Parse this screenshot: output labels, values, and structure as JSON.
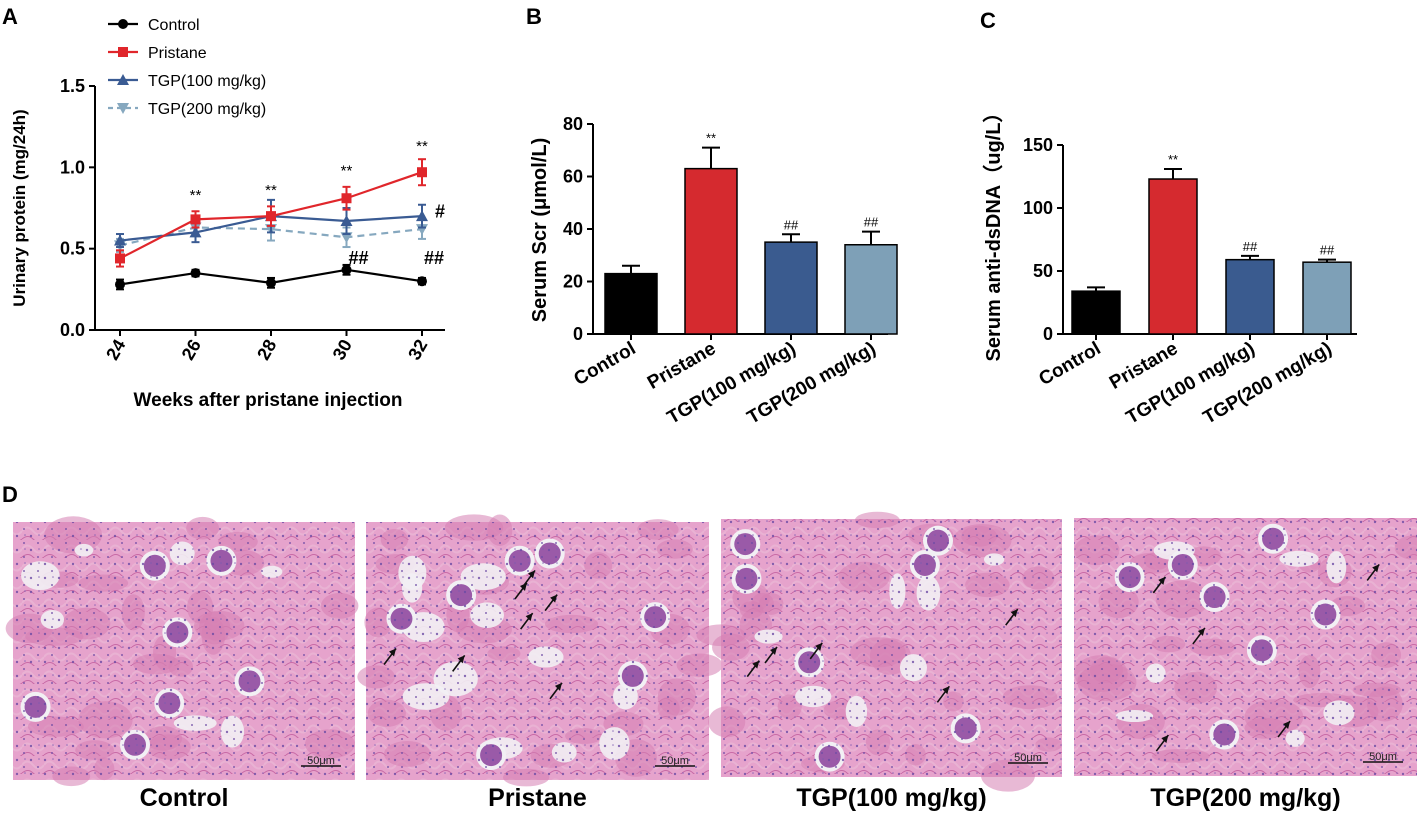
{
  "panel_labels": {
    "A": "A",
    "B": "B",
    "C": "C",
    "D": "D"
  },
  "chart_data": [
    {
      "type": "line",
      "panel": "A",
      "xlabel": "Weeks after pristane injection",
      "ylabel": "Urinary protein (mg/24h)",
      "x": [
        24,
        26,
        28,
        30,
        32
      ],
      "x_ticks": [
        "24",
        "26",
        "28",
        "30",
        "32"
      ],
      "ylim": [
        0,
        1.5
      ],
      "y_ticks": [
        "0.0",
        "0.5",
        "1.0",
        "1.5"
      ],
      "legend_position": "top-left",
      "series": [
        {
          "name": "Control",
          "color": "#000000",
          "marker": "circle",
          "dashed": false,
          "values": [
            0.28,
            0.35,
            0.29,
            0.37,
            0.3
          ],
          "errors": [
            0.03,
            0.02,
            0.03,
            0.03,
            0.02
          ]
        },
        {
          "name": "Pristane",
          "color": "#e0262b",
          "marker": "square",
          "dashed": false,
          "values": [
            0.44,
            0.68,
            0.7,
            0.81,
            0.97
          ],
          "errors": [
            0.05,
            0.05,
            0.06,
            0.07,
            0.08
          ]
        },
        {
          "name": "TGP(100 mg/kg)",
          "color": "#3a5b93",
          "marker": "triangle-up",
          "dashed": false,
          "values": [
            0.55,
            0.6,
            0.7,
            0.67,
            0.7
          ],
          "errors": [
            0.04,
            0.06,
            0.1,
            0.08,
            0.07
          ]
        },
        {
          "name": "TGP(200 mg/kg)",
          "color": "#86a8bf",
          "marker": "triangle-down",
          "dashed": true,
          "values": [
            0.52,
            0.63,
            0.62,
            0.57,
            0.62
          ],
          "errors": [
            0.04,
            0.05,
            0.07,
            0.06,
            0.06
          ]
        }
      ],
      "annotations": [
        {
          "text": "**",
          "x": 26,
          "y": 0.8
        },
        {
          "text": "**",
          "x": 28,
          "y": 0.83
        },
        {
          "text": "**",
          "x": 30,
          "y": 0.95
        },
        {
          "text": "**",
          "x": 32,
          "y": 1.1
        },
        {
          "text": "#",
          "x": 32,
          "y": 0.73
        },
        {
          "text": "##",
          "x": 30,
          "y": 0.48
        },
        {
          "text": "##",
          "x": 32,
          "y": 0.48
        }
      ]
    },
    {
      "type": "bar",
      "panel": "B",
      "ylabel": "Serum Scr (μmol/L)",
      "categories": [
        "Control",
        "Pristane",
        "TGP(100 mg/kg)",
        "TGP(200 mg/kg)"
      ],
      "values": [
        23,
        63,
        35,
        34
      ],
      "errors": [
        3,
        8,
        3,
        5
      ],
      "colors": [
        "#000000",
        "#d52a2f",
        "#3a5b8f",
        "#7ea0b7"
      ],
      "labels": [
        "",
        "**",
        "##",
        "##"
      ],
      "ylim": [
        0,
        80
      ],
      "y_ticks": [
        "0",
        "20",
        "40",
        "60",
        "80"
      ]
    },
    {
      "type": "bar",
      "panel": "C",
      "ylabel": "Serum anti-dsDNA（ug/L）",
      "categories": [
        "Control",
        "Pristane",
        "TGP(100 mg/kg)",
        "TGP(200 mg/kg)"
      ],
      "values": [
        34,
        123,
        59,
        57
      ],
      "errors": [
        3,
        8,
        3,
        2
      ],
      "colors": [
        "#000000",
        "#d52a2f",
        "#3a5b8f",
        "#7ea0b7"
      ],
      "labels": [
        "",
        "**",
        "##",
        "##"
      ],
      "ylim": [
        0,
        150
      ],
      "y_ticks": [
        "0",
        "50",
        "100",
        "150"
      ]
    }
  ],
  "histology": {
    "panels": [
      {
        "caption": "Control",
        "scale_bar": "50μm"
      },
      {
        "caption": "Pristane",
        "scale_bar": "50μm"
      },
      {
        "caption": "TGP(100 mg/kg)",
        "scale_bar": "50μm"
      },
      {
        "caption": "TGP(200 mg/kg)",
        "scale_bar": "50μm"
      }
    ],
    "colors": {
      "background": "#e6a3cc",
      "tissue": "#d67fb3",
      "nuclei": "#5b3f9a",
      "lumen": "#f2f0f4"
    }
  }
}
